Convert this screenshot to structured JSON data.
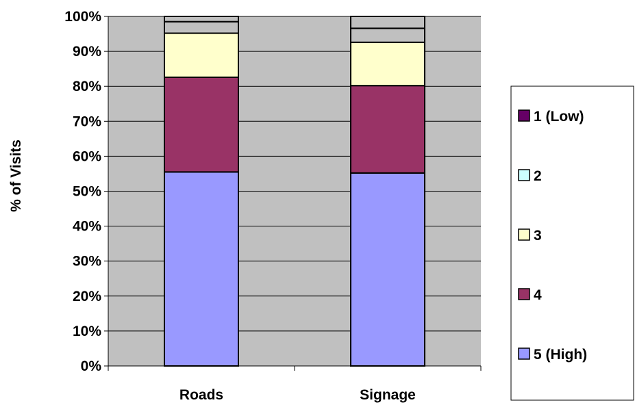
{
  "chart_data": {
    "type": "bar",
    "stacked": true,
    "title": "",
    "xlabel": "",
    "ylabel": "% of Visits",
    "ylim": [
      0,
      100
    ],
    "y_ticks": [
      "0%",
      "10%",
      "20%",
      "30%",
      "40%",
      "50%",
      "60%",
      "70%",
      "80%",
      "90%",
      "100%"
    ],
    "y_tick_values": [
      0,
      10,
      20,
      30,
      40,
      50,
      60,
      70,
      80,
      90,
      100
    ],
    "categories": [
      "Roads",
      "Signage"
    ],
    "series": [
      {
        "name": "5 (High)",
        "values": [
          55.5,
          55.2
        ],
        "color": "#9999ff"
      },
      {
        "name": "4",
        "values": [
          27.1,
          25.0
        ],
        "color": "#993366"
      },
      {
        "name": "3",
        "values": [
          12.6,
          12.4
        ],
        "color": "#ffffcc"
      },
      {
        "name": "2",
        "values": [
          3.3,
          4.0
        ],
        "color": "#c0c0c0"
      },
      {
        "name": "1 (Low)",
        "values": [
          1.5,
          3.4
        ],
        "color": "#c0c0c0"
      }
    ],
    "legend": {
      "placement": "right",
      "entries": [
        {
          "label": "1 (Low)",
          "color": "#660066"
        },
        {
          "label": "2",
          "color": "#ccffff"
        },
        {
          "label": "3",
          "color": "#ffffcc"
        },
        {
          "label": "4",
          "color": "#993366"
        },
        {
          "label": "5 (High)",
          "color": "#9999ff"
        }
      ]
    },
    "plot_background": "#c0c0c0",
    "grid": true
  }
}
